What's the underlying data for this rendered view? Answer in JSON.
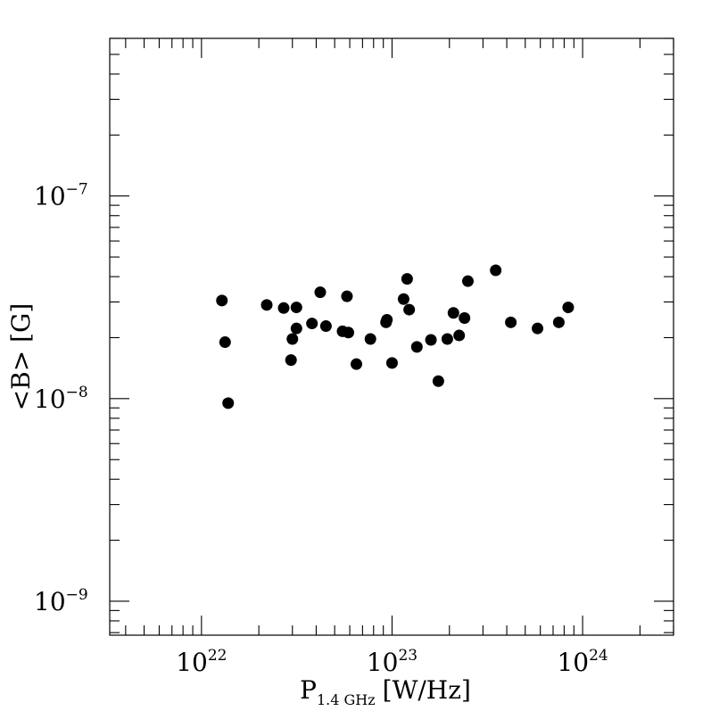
{
  "chart_data": {
    "type": "scatter",
    "xlabel": "P",
    "xlabel_sub": "1.4 GHz",
    "xlabel_unit": "[W/Hz]",
    "ylabel": "<B> [G]",
    "xscale": "log",
    "yscale": "log",
    "xlim": [
      3.3e+21,
      3e+24
    ],
    "ylim": [
      6.8e-10,
      6e-07
    ],
    "x_ticks": [
      {
        "value": 1e+22,
        "base": "10",
        "exp": "22"
      },
      {
        "value": 1e+23,
        "base": "10",
        "exp": "23"
      },
      {
        "value": 1e+24,
        "base": "10",
        "exp": "24"
      }
    ],
    "y_ticks": [
      {
        "value": 1e-09,
        "base": "10",
        "exp": "−9"
      },
      {
        "value": 1e-08,
        "base": "10",
        "exp": "−8"
      },
      {
        "value": 1e-07,
        "base": "10",
        "exp": "−7"
      }
    ],
    "grid": false,
    "series": [
      {
        "points": [
          [
            1.28e+22,
            3.05e-08
          ],
          [
            1.33e+22,
            1.9e-08
          ],
          [
            1.38e+22,
            9.5e-09
          ],
          [
            2.2e+22,
            2.9e-08
          ],
          [
            2.7e+22,
            2.8e-08
          ],
          [
            2.95e+22,
            1.55e-08
          ],
          [
            3e+22,
            1.97e-08
          ],
          [
            3.15e+22,
            2.82e-08
          ],
          [
            3.15e+22,
            2.22e-08
          ],
          [
            3.8e+22,
            2.35e-08
          ],
          [
            4.2e+22,
            3.35e-08
          ],
          [
            4.5e+22,
            2.28e-08
          ],
          [
            5.5e+22,
            2.15e-08
          ],
          [
            5.8e+22,
            3.2e-08
          ],
          [
            5.9e+22,
            2.12e-08
          ],
          [
            6.5e+22,
            1.48e-08
          ],
          [
            7.7e+22,
            1.97e-08
          ],
          [
            9.3e+22,
            2.38e-08
          ],
          [
            9.4e+22,
            2.45e-08
          ],
          [
            1e+23,
            1.5e-08
          ],
          [
            1.15e+23,
            3.1e-08
          ],
          [
            1.2e+23,
            3.9e-08
          ],
          [
            1.23e+23,
            2.75e-08
          ],
          [
            1.35e+23,
            1.8e-08
          ],
          [
            1.6e+23,
            1.95e-08
          ],
          [
            1.75e+23,
            1.22e-08
          ],
          [
            1.95e+23,
            1.97e-08
          ],
          [
            2.1e+23,
            2.65e-08
          ],
          [
            2.25e+23,
            2.05e-08
          ],
          [
            2.4e+23,
            2.5e-08
          ],
          [
            2.5e+23,
            3.8e-08
          ],
          [
            3.5e+23,
            4.3e-08
          ],
          [
            4.2e+23,
            2.38e-08
          ],
          [
            5.8e+23,
            2.22e-08
          ],
          [
            7.5e+23,
            2.38e-08
          ],
          [
            8.4e+23,
            2.82e-08
          ]
        ]
      }
    ]
  }
}
